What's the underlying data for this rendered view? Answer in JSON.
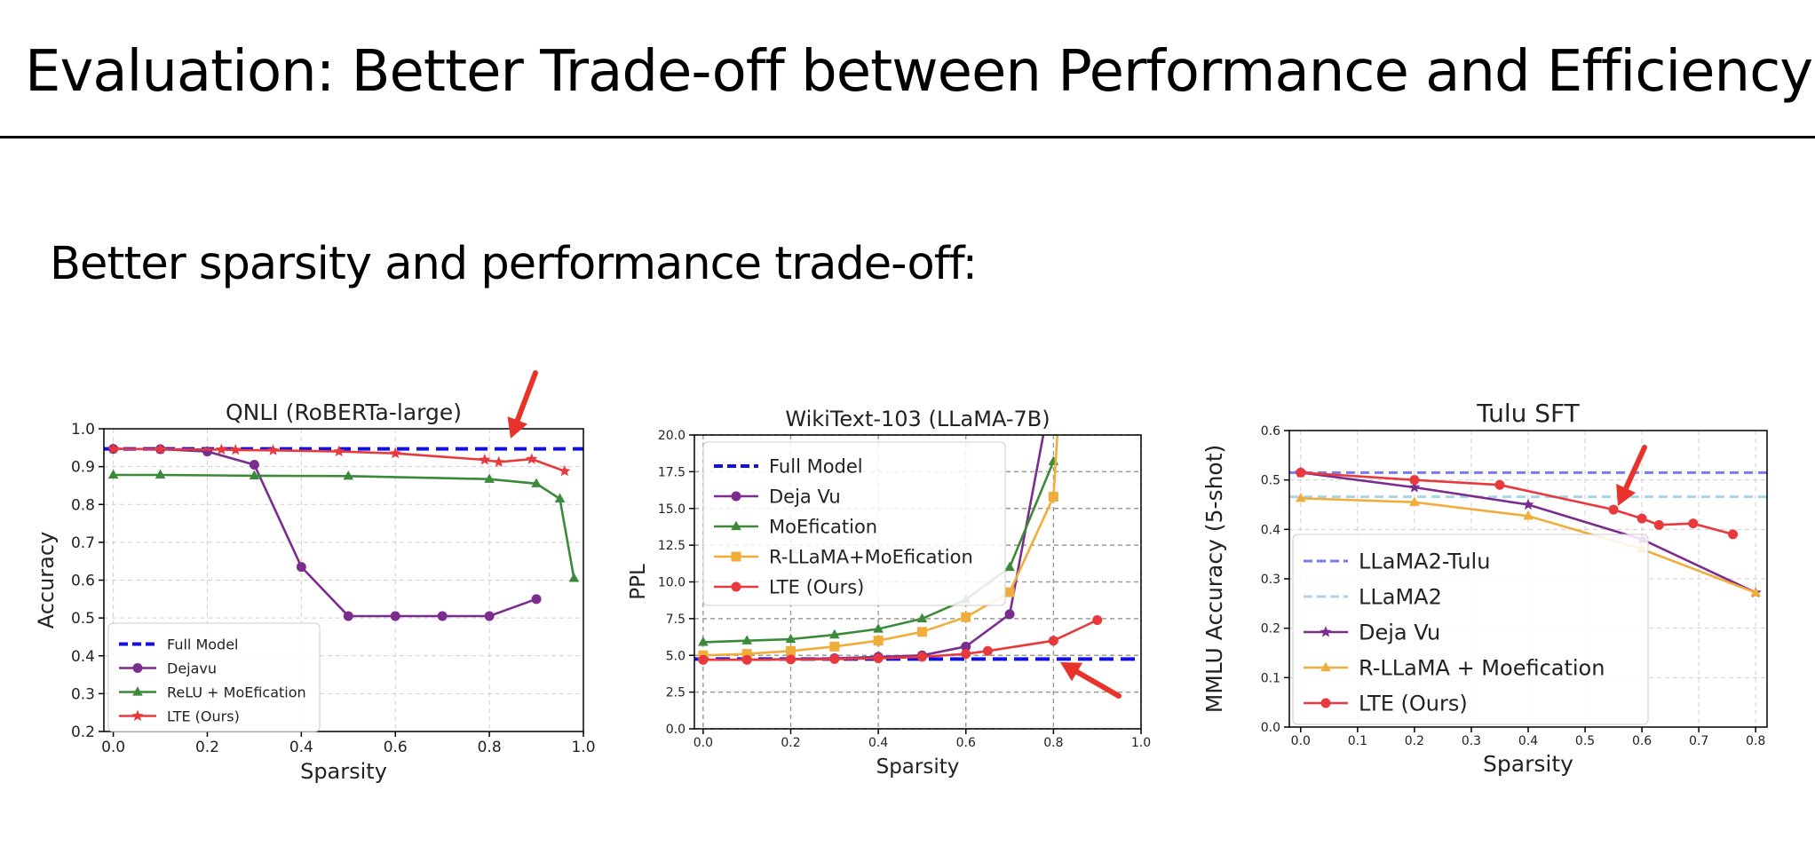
{
  "slide": {
    "title": "Evaluation:  Better Trade-off between Performance and Efficiency",
    "subtitle": "Better sparsity and performance trade-off:"
  },
  "chart_data": [
    {
      "type": "line",
      "title": "QNLI (RoBERTa-large)",
      "xlabel": "Sparsity",
      "ylabel": "Accuracy",
      "xlim": [
        -0.02,
        1.0
      ],
      "ylim": [
        0.2,
        1.0
      ],
      "xticks": [
        "0.0",
        "0.2",
        "0.4",
        "0.6",
        "0.8",
        "1.0"
      ],
      "yticks": [
        "0.2",
        "0.3",
        "0.4",
        "0.5",
        "0.6",
        "0.7",
        "0.8",
        "0.9",
        "1.0"
      ],
      "grid": true,
      "legend_position": "lower-left",
      "series": [
        {
          "name": "Full Model",
          "style": "dashed",
          "color": "#1010e0",
          "hline": 0.947
        },
        {
          "name": "Dejavu",
          "color": "#7b2c8f",
          "marker": "circle",
          "x": [
            0.0,
            0.1,
            0.2,
            0.3,
            0.4,
            0.5,
            0.6,
            0.7,
            0.8,
            0.9
          ],
          "y": [
            0.947,
            0.946,
            0.94,
            0.905,
            0.635,
            0.505,
            0.505,
            0.505,
            0.505,
            0.55
          ]
        },
        {
          "name": "ReLU + MoEfication",
          "color": "#3a8a3a",
          "marker": "triangle",
          "x": [
            0.0,
            0.1,
            0.3,
            0.5,
            0.8,
            0.9,
            0.95,
            0.98
          ],
          "y": [
            0.878,
            0.878,
            0.876,
            0.875,
            0.867,
            0.855,
            0.815,
            0.605
          ]
        },
        {
          "name": "LTE (Ours)",
          "color": "#e8393c",
          "marker": "star",
          "x": [
            0.0,
            0.1,
            0.23,
            0.26,
            0.34,
            0.48,
            0.6,
            0.79,
            0.82,
            0.89,
            0.96
          ],
          "y": [
            0.947,
            0.946,
            0.945,
            0.944,
            0.943,
            0.94,
            0.935,
            0.918,
            0.912,
            0.92,
            0.888
          ]
        }
      ],
      "annotations": [
        {
          "type": "arrow",
          "text": ""
        }
      ]
    },
    {
      "type": "line",
      "title": "WikiText-103 (LLaMA-7B)",
      "xlabel": "Sparsity",
      "ylabel": "PPL",
      "xlim": [
        -0.02,
        1.0
      ],
      "ylim": [
        0.0,
        20.0
      ],
      "xticks": [
        "0.0",
        "0.2",
        "0.4",
        "0.6",
        "0.8",
        "1.0"
      ],
      "yticks": [
        "0.0",
        "2.5",
        "5.0",
        "7.5",
        "10.0",
        "12.5",
        "15.0",
        "17.5",
        "20.0"
      ],
      "grid": true,
      "legend_position": "upper-left",
      "series": [
        {
          "name": "Full Model",
          "style": "dashed",
          "color": "#1010e0",
          "hline": 4.75
        },
        {
          "name": "Deja Vu",
          "color": "#7b2c8f",
          "marker": "circle",
          "x": [
            0.0,
            0.1,
            0.2,
            0.3,
            0.4,
            0.5,
            0.6,
            0.7,
            0.78
          ],
          "y": [
            4.7,
            4.7,
            4.75,
            4.8,
            4.9,
            5.0,
            5.6,
            7.8,
            20.5
          ]
        },
        {
          "name": "MoEfication",
          "color": "#3a8a3a",
          "marker": "triangle",
          "x": [
            0.0,
            0.1,
            0.2,
            0.3,
            0.4,
            0.5,
            0.6,
            0.7,
            0.8
          ],
          "y": [
            5.9,
            6.0,
            6.1,
            6.4,
            6.8,
            7.5,
            8.8,
            11.0,
            18.2
          ]
        },
        {
          "name": "R-LLaMA+MoEfication",
          "color": "#f0ad3a",
          "marker": "square",
          "x": [
            0.0,
            0.1,
            0.2,
            0.3,
            0.4,
            0.5,
            0.6,
            0.7,
            0.8,
            0.81
          ],
          "y": [
            5.0,
            5.1,
            5.3,
            5.6,
            6.0,
            6.6,
            7.6,
            9.3,
            15.8,
            20.5
          ]
        },
        {
          "name": "LTE (Ours)",
          "color": "#e8393c",
          "marker": "circle",
          "x": [
            0.0,
            0.1,
            0.2,
            0.3,
            0.4,
            0.5,
            0.6,
            0.65,
            0.8,
            0.9
          ],
          "y": [
            4.7,
            4.7,
            4.72,
            4.75,
            4.8,
            4.9,
            5.1,
            5.3,
            6.0,
            7.4
          ]
        }
      ],
      "annotations": [
        {
          "type": "arrow",
          "text": ""
        }
      ]
    },
    {
      "type": "line",
      "title": "Tulu SFT",
      "xlabel": "Sparsity",
      "ylabel": "MMLU Accuracy (5-shot)",
      "xlim": [
        -0.02,
        0.82
      ],
      "ylim": [
        0.0,
        0.6
      ],
      "xticks": [
        "0.0",
        "0.1",
        "0.2",
        "0.3",
        "0.4",
        "0.5",
        "0.6",
        "0.7",
        "0.8"
      ],
      "yticks": [
        "0.0",
        "0.1",
        "0.2",
        "0.3",
        "0.4",
        "0.5",
        "0.6"
      ],
      "grid": true,
      "legend_position": "lower-left",
      "series": [
        {
          "name": "LLaMA2-Tulu",
          "style": "dashed",
          "color": "#7a7aee",
          "hline": 0.515
        },
        {
          "name": "LLaMA2",
          "style": "dashed",
          "color": "#a8d6e8",
          "hline": 0.466
        },
        {
          "name": "Deja Vu",
          "color": "#7b2c8f",
          "marker": "star",
          "x": [
            0.0,
            0.2,
            0.4,
            0.6,
            0.8
          ],
          "y": [
            0.515,
            0.485,
            0.45,
            0.38,
            0.272
          ]
        },
        {
          "name": "R-LLaMA + Moefication",
          "color": "#f0ad3a",
          "marker": "triangle",
          "x": [
            0.0,
            0.2,
            0.4,
            0.6,
            0.8
          ],
          "y": [
            0.463,
            0.455,
            0.427,
            0.36,
            0.272
          ]
        },
        {
          "name": "LTE (Ours)",
          "color": "#e8393c",
          "marker": "circle",
          "x": [
            0.0,
            0.2,
            0.35,
            0.55,
            0.6,
            0.63,
            0.69,
            0.76
          ],
          "y": [
            0.515,
            0.5,
            0.49,
            0.44,
            0.422,
            0.409,
            0.412,
            0.39
          ]
        }
      ],
      "annotations": [
        {
          "type": "arrow",
          "text": ""
        }
      ]
    }
  ]
}
